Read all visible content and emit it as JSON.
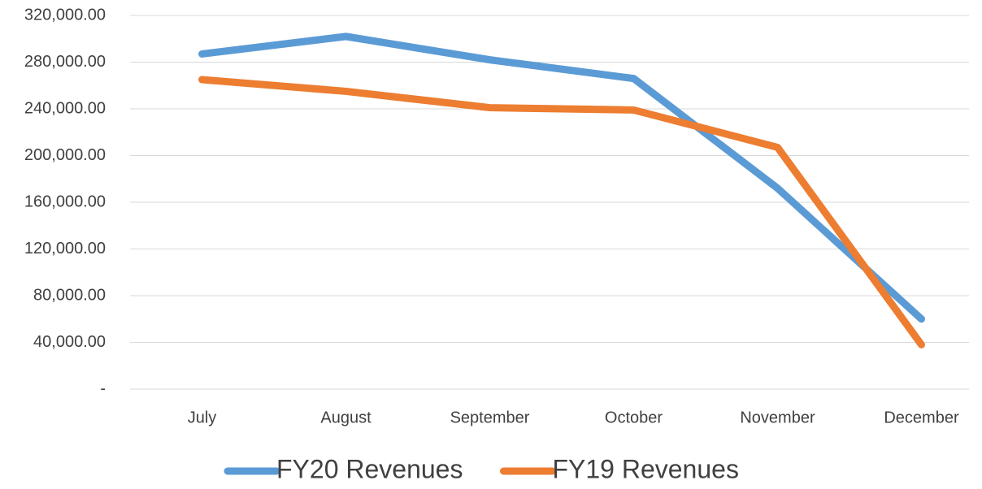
{
  "chart_data": {
    "type": "line",
    "categories": [
      "July",
      "August",
      "September",
      "October",
      "November",
      "December"
    ],
    "series": [
      {
        "name": "FY20 Revenues",
        "color": "#5b9bd5",
        "values": [
          287000,
          302000,
          282000,
          266000,
          172000,
          60000
        ]
      },
      {
        "name": "FY19 Revenues",
        "color": "#ed7d31",
        "values": [
          265000,
          255000,
          241000,
          239000,
          207000,
          38000
        ]
      }
    ],
    "ylim": [
      0,
      320000
    ],
    "yticks": [
      {
        "value": 0,
        "label": "-"
      },
      {
        "value": 40000,
        "label": "40,000.00"
      },
      {
        "value": 80000,
        "label": "80,000.00"
      },
      {
        "value": 120000,
        "label": "120,000.00"
      },
      {
        "value": 160000,
        "label": "160,000.00"
      },
      {
        "value": 200000,
        "label": "200,000.00"
      },
      {
        "value": 240000,
        "label": "240,000.00"
      },
      {
        "value": 280000,
        "label": "280,000.00"
      },
      {
        "value": 320000,
        "label": "320,000.00"
      }
    ],
    "grid": true,
    "legend": "bottom"
  }
}
